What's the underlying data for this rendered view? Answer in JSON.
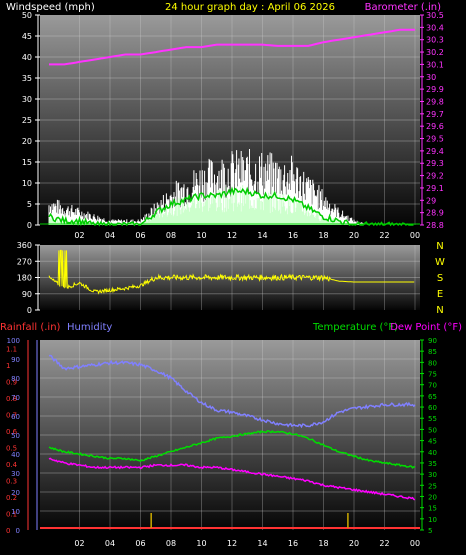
{
  "panel1": {
    "left_title": "Windspeed (mph)",
    "center_title": "24 hour graph day : April 06 2026",
    "right_title": "Barometer (.in)",
    "left_ticks": [
      "0",
      "5",
      "10",
      "15",
      "20",
      "25",
      "30",
      "35",
      "40",
      "45",
      "50"
    ],
    "right_ticks": [
      "28.8",
      "28.9",
      "29",
      "29.1",
      "29.2",
      "29.3",
      "29.4",
      "29.5",
      "29.6",
      "29.7",
      "29.8",
      "29.9",
      "30",
      "30.1",
      "30.2",
      "30.3",
      "30.4",
      "30.5"
    ],
    "x_ticks": [
      "02",
      "04",
      "06",
      "08",
      "10",
      "12",
      "14",
      "16",
      "18",
      "20",
      "22",
      "00"
    ]
  },
  "panel2": {
    "left_ticks": [
      "0",
      "90",
      "180",
      "270",
      "360"
    ],
    "compass": [
      "N",
      "W",
      "S",
      "E",
      "N"
    ],
    "x_ticks": []
  },
  "panel3": {
    "left_title1": "Rainfall (.in)",
    "left_title2": "Humidity",
    "right_title1": "Temperature (°F)",
    "right_title2": "Dew Point (°F)",
    "rain_ticks": [
      "0",
      "0.1",
      "0.2",
      "0.3",
      "0.4",
      "0.5",
      "0.6",
      "0.7",
      "0.8",
      "0.9",
      "1",
      "1.1"
    ],
    "hum_ticks": [
      "0",
      "10",
      "20",
      "30",
      "40",
      "50",
      "60",
      "70",
      "80",
      "90",
      "100"
    ],
    "temp_ticks": [
      "5",
      "10",
      "15",
      "20",
      "25",
      "30",
      "35",
      "40",
      "45",
      "50",
      "55",
      "60",
      "65",
      "70",
      "75",
      "80",
      "85",
      "90"
    ],
    "x_ticks": [
      "02",
      "04",
      "06",
      "08",
      "10",
      "12",
      "14",
      "16",
      "18",
      "20",
      "22",
      "00"
    ]
  },
  "colors": {
    "windspeed": "#ffffff",
    "wind_avg": "#00cc00",
    "wind_light": "#ccffcc",
    "barometer": "#ff33ff",
    "direction": "#ffff00",
    "rainfall": "#ff3333",
    "humidity": "#8080ff",
    "temperature": "#00dd00",
    "dewpoint": "#ff00ff",
    "rain_bar": "#ccaa00"
  },
  "chart_data": [
    {
      "type": "line",
      "ylabel": "Windspeed (mph)",
      "y2label": "Barometer (.in)",
      "ylim": [
        0,
        50
      ],
      "y2lim": [
        28.8,
        30.5
      ],
      "x_hours": [
        0,
        1,
        2,
        3,
        4,
        5,
        6,
        7,
        8,
        9,
        10,
        11,
        12,
        13,
        14,
        15,
        16,
        17,
        18,
        19,
        20,
        21,
        22,
        23,
        24
      ],
      "series": [
        {
          "name": "Barometer (.in)",
          "axis": "right",
          "values": [
            30.1,
            30.1,
            30.12,
            30.14,
            30.16,
            30.18,
            30.18,
            30.2,
            30.22,
            30.24,
            30.24,
            30.26,
            30.26,
            30.26,
            30.26,
            30.25,
            30.25,
            30.25,
            30.28,
            30.3,
            30.32,
            30.34,
            30.36,
            30.38,
            30.38
          ]
        },
        {
          "name": "Gust",
          "axis": "left",
          "values": [
            5,
            4,
            3,
            2,
            1,
            1,
            1,
            4,
            7,
            9,
            11,
            12,
            13,
            13,
            13,
            12,
            12,
            9,
            6,
            3,
            1,
            0,
            0,
            0,
            0
          ]
        },
        {
          "name": "Average",
          "axis": "left",
          "values": [
            2,
            1,
            1,
            0,
            0,
            0,
            0,
            3,
            5,
            6,
            7,
            7,
            8,
            8,
            7,
            7,
            6,
            4,
            2,
            1,
            0,
            0,
            0,
            0,
            0
          ]
        }
      ]
    },
    {
      "type": "scatter",
      "ylabel": "Wind direction",
      "ylim": [
        0,
        360
      ],
      "x_hours": [
        0,
        1,
        2,
        3,
        4,
        5,
        6,
        7,
        8,
        9,
        10,
        11,
        12,
        13,
        14,
        15,
        16,
        17,
        18,
        19,
        20,
        21,
        22,
        23,
        24
      ],
      "series": [
        {
          "name": "Direction",
          "values": [
            180,
            120,
            150,
            100,
            110,
            120,
            135,
            180,
            180,
            180,
            180,
            180,
            180,
            180,
            180,
            180,
            180,
            180,
            180,
            160,
            155,
            155,
            155,
            155,
            155
          ]
        }
      ]
    },
    {
      "type": "line",
      "ylabel": "Humidity",
      "y2label": "Temperature (°F)",
      "ylim": [
        0,
        100
      ],
      "y2lim": [
        5,
        90
      ],
      "x_hours": [
        0,
        1,
        2,
        3,
        4,
        5,
        6,
        7,
        8,
        9,
        10,
        11,
        12,
        13,
        14,
        15,
        16,
        17,
        18,
        19,
        20,
        21,
        22,
        23,
        24
      ],
      "series": [
        {
          "name": "Humidity",
          "axis": "left",
          "values": [
            92,
            85,
            86,
            87,
            88,
            88,
            87,
            84,
            80,
            73,
            67,
            63,
            62,
            60,
            58,
            56,
            55,
            55,
            57,
            62,
            64,
            65,
            66,
            66,
            66
          ]
        },
        {
          "name": "Temperature (°F)",
          "axis": "right",
          "values": [
            42,
            40,
            39,
            38,
            37,
            37,
            36,
            38,
            40,
            42,
            44,
            46,
            47,
            48,
            49,
            49,
            48,
            46,
            43,
            40,
            38,
            36,
            35,
            34,
            33
          ]
        },
        {
          "name": "Dew Point (°F)",
          "axis": "right",
          "values": [
            37,
            35,
            34,
            33,
            33,
            33,
            33,
            34,
            34,
            34,
            33,
            33,
            32,
            31,
            30,
            29,
            28,
            27,
            25,
            24,
            23,
            22,
            21,
            20,
            19
          ]
        },
        {
          "name": "Rainfall (.in)",
          "axis": "left2",
          "values": [
            0,
            0,
            0,
            0,
            0,
            0,
            0,
            0,
            0,
            0,
            0,
            0,
            0,
            0,
            0,
            0,
            0,
            0,
            0,
            0,
            0,
            0,
            0,
            0,
            0
          ]
        }
      ]
    }
  ]
}
